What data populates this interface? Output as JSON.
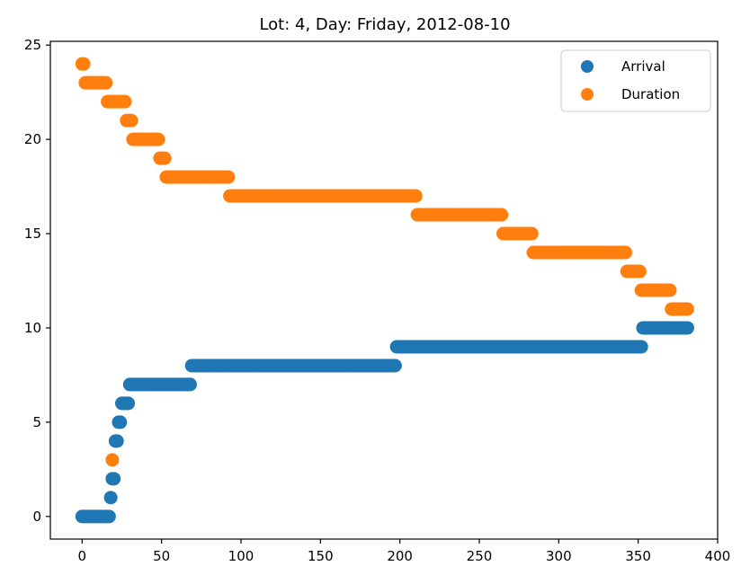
{
  "chart_data": {
    "type": "scatter",
    "title": "Lot: 4, Day: Friday, 2012-08-10",
    "xlabel": "",
    "ylabel": "",
    "xlim": [
      -20,
      400
    ],
    "ylim": [
      -1.2,
      25.2
    ],
    "xticks": [
      0,
      50,
      100,
      150,
      200,
      250,
      300,
      350,
      400
    ],
    "yticks": [
      0,
      5,
      10,
      15,
      20,
      25
    ],
    "grid": false,
    "legend_position": "top-right",
    "series": [
      {
        "name": "Arrival",
        "color": "#1f77b4",
        "runs": [
          {
            "y": 0,
            "x_start": 0,
            "x_end": 17
          },
          {
            "y": 1,
            "x_start": 18,
            "x_end": 18
          },
          {
            "y": 2,
            "x_start": 19,
            "x_end": 20
          },
          {
            "y": 4,
            "x_start": 21,
            "x_end": 22
          },
          {
            "y": 5,
            "x_start": 23,
            "x_end": 24
          },
          {
            "y": 6,
            "x_start": 25,
            "x_end": 29
          },
          {
            "y": 7,
            "x_start": 30,
            "x_end": 68
          },
          {
            "y": 8,
            "x_start": 69,
            "x_end": 197
          },
          {
            "y": 9,
            "x_start": 198,
            "x_end": 352
          },
          {
            "y": 10,
            "x_start": 353,
            "x_end": 381
          }
        ]
      },
      {
        "name": "Duration",
        "color": "#ff7f0e",
        "runs": [
          {
            "y": 24,
            "x_start": 0,
            "x_end": 1
          },
          {
            "y": 23,
            "x_start": 2,
            "x_end": 15
          },
          {
            "y": 22,
            "x_start": 16,
            "x_end": 27
          },
          {
            "y": 3,
            "x_start": 19,
            "x_end": 19
          },
          {
            "y": 21,
            "x_start": 28,
            "x_end": 31
          },
          {
            "y": 20,
            "x_start": 32,
            "x_end": 48
          },
          {
            "y": 19,
            "x_start": 49,
            "x_end": 52
          },
          {
            "y": 18,
            "x_start": 53,
            "x_end": 92
          },
          {
            "y": 17,
            "x_start": 93,
            "x_end": 210
          },
          {
            "y": 16,
            "x_start": 211,
            "x_end": 264
          },
          {
            "y": 15,
            "x_start": 265,
            "x_end": 283
          },
          {
            "y": 14,
            "x_start": 284,
            "x_end": 342
          },
          {
            "y": 13,
            "x_start": 343,
            "x_end": 351
          },
          {
            "y": 12,
            "x_start": 352,
            "x_end": 370
          },
          {
            "y": 11,
            "x_start": 371,
            "x_end": 381
          }
        ]
      }
    ]
  }
}
